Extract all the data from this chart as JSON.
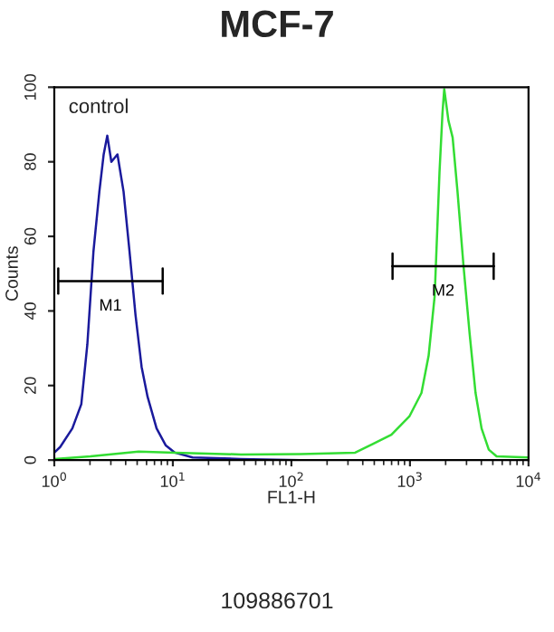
{
  "chart_data": {
    "type": "line",
    "title": "MCF-7",
    "xlabel": "FL1-H",
    "ylabel": "Counts",
    "log": "x",
    "xlim": [
      1,
      10000
    ],
    "ylim": [
      0,
      100
    ],
    "xticks": [
      {
        "value": 1,
        "label": "10$^{0}$"
      },
      {
        "value": 10,
        "label": "10$^{1}$"
      },
      {
        "value": 100,
        "label": "10$^{2}$"
      },
      {
        "value": 1000,
        "label": "10$^{3}$"
      },
      {
        "value": 10000,
        "label": "10$^{4}$"
      }
    ],
    "yticks": [
      0,
      20,
      40,
      60,
      80,
      100
    ],
    "grid": false,
    "legend": false,
    "series": [
      {
        "color": "#1a1a9c",
        "x": [
          1,
          1.12,
          1.42,
          1.69,
          1.9,
          2.14,
          2.4,
          2.61,
          2.8,
          3.03,
          3.41,
          3.84,
          4.31,
          4.84,
          5.45,
          6.12,
          7.29,
          8.69,
          10.4,
          14.7,
          37.5,
          120,
          1250,
          10000
        ],
        "values": [
          2,
          3.5,
          8.5,
          15,
          31,
          56,
          72,
          82,
          87,
          80,
          82,
          72,
          56,
          39,
          25,
          17,
          8.5,
          4,
          2,
          0.7,
          0.3,
          0,
          0,
          0
        ]
      },
      {
        "color": "#33dd33",
        "x": [
          1,
          2.02,
          5.14,
          10.4,
          37.5,
          120,
          345,
          490,
          697,
          988,
          1250,
          1437,
          1616,
          1774,
          1880,
          1946,
          2113,
          2291,
          2518,
          2831,
          3184,
          3575,
          4018,
          4624,
          5381,
          10000
        ],
        "values": [
          0.3,
          1,
          2.3,
          2,
          1.5,
          1.6,
          2,
          4.4,
          6.8,
          11.7,
          18,
          28,
          44,
          77,
          93,
          99.5,
          91,
          86.5,
          72,
          52,
          34,
          18,
          8.5,
          2.8,
          1,
          0.7
        ]
      },
      {
        "name": "M1",
        "color": "#000000",
        "x": [
          1.08,
          8.21
        ],
        "values": [
          48,
          48
        ]
      },
      {
        "name": "M2",
        "color": "#000000",
        "x": [
          713,
          5082
        ],
        "values": [
          52,
          52
        ]
      }
    ],
    "annotations": [
      "control",
      "109886701"
    ]
  }
}
